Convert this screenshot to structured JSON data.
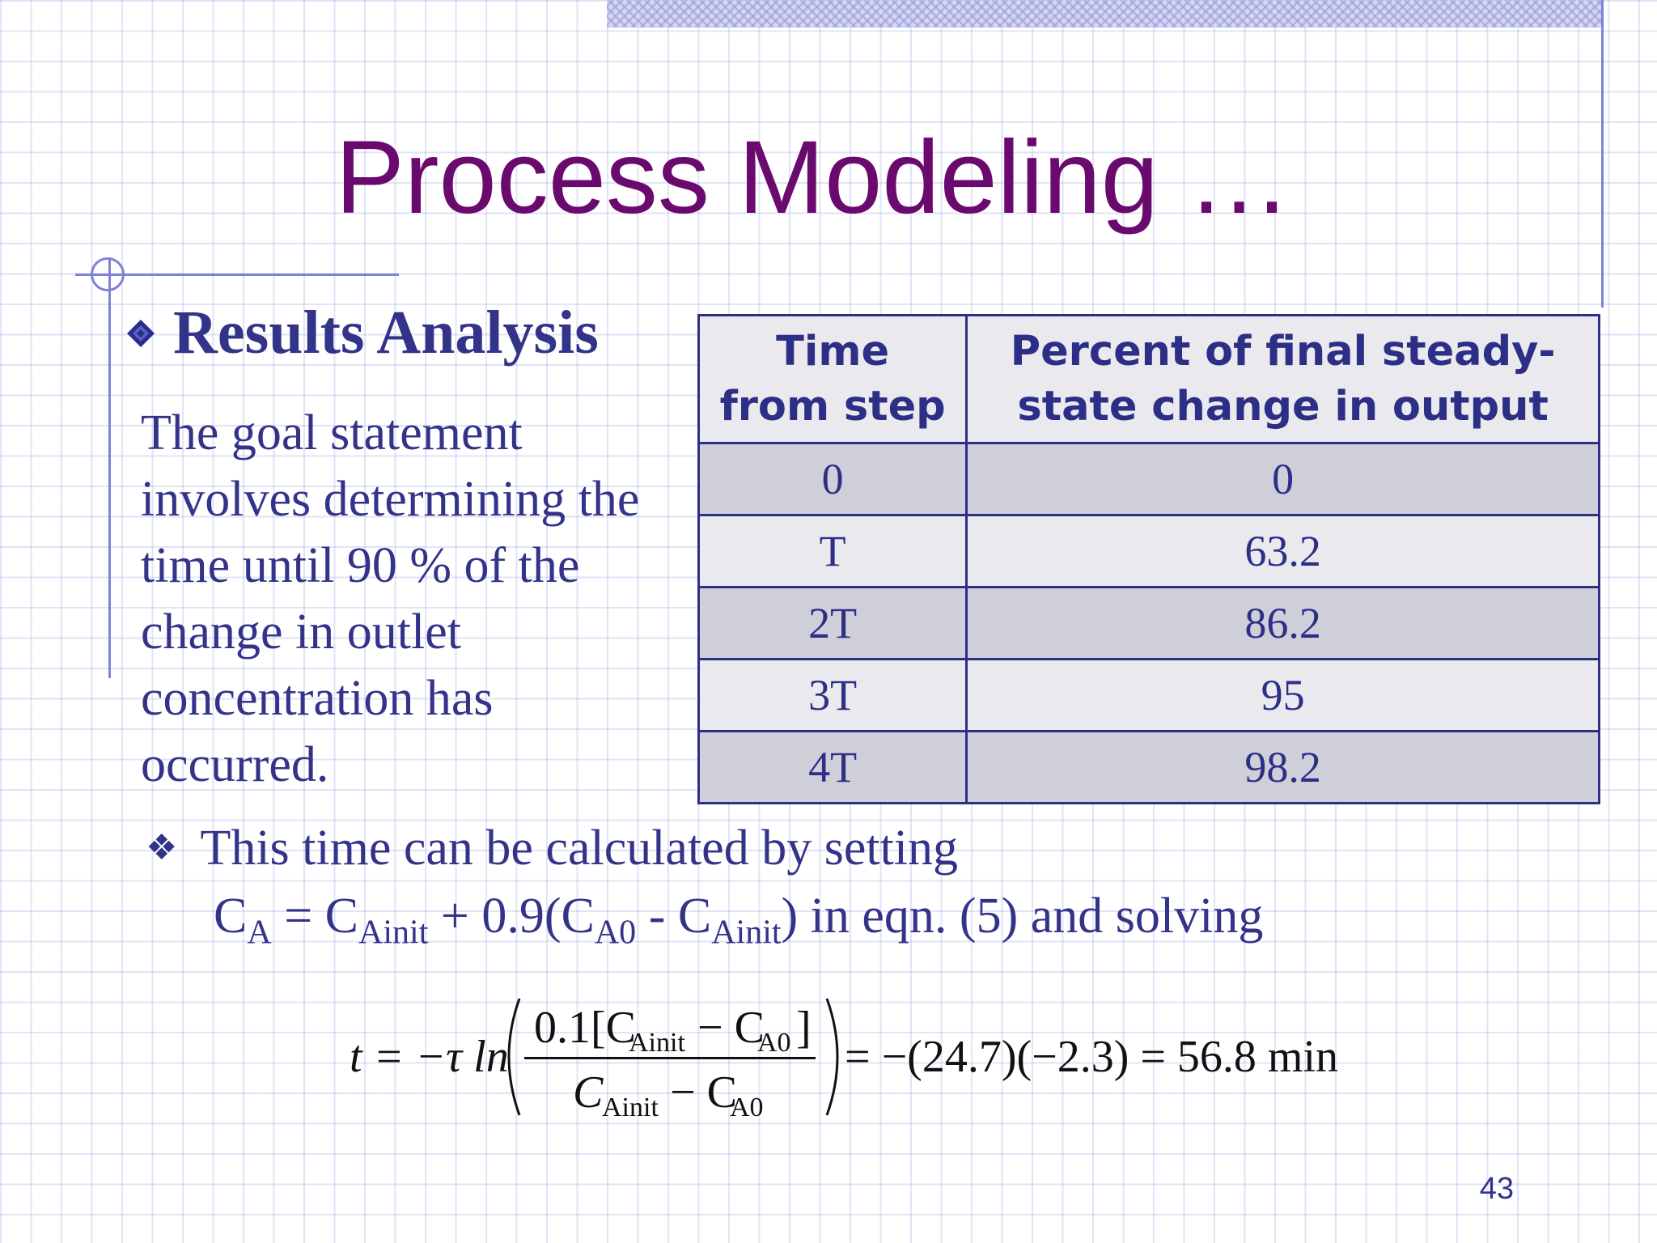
{
  "slide": {
    "title": "Process Modeling …",
    "page_number": "43"
  },
  "results": {
    "heading": "Results Analysis",
    "paragraph": "The goal statement involves determining the time until 90 % of the change in outlet concentration has occurred."
  },
  "table": {
    "headers": [
      "Time from step",
      "Percent of final steady-state change in output"
    ],
    "header_col1_line1": "Time",
    "header_col1_line2": "from step",
    "header_col2_line1": "Percent of final steady-",
    "header_col2_line2": "state change in output",
    "rows": [
      [
        "0",
        "0"
      ],
      [
        "T",
        "63.2"
      ],
      [
        "2T",
        "86.2"
      ],
      [
        "3T",
        "95"
      ],
      [
        "4T",
        "98.2"
      ]
    ]
  },
  "calc": {
    "bullet": "This time can be calculated by setting",
    "eq_CA": "C",
    "eq_A": "A",
    "eq_eq": " = C",
    "eq_Ainit1": "Ainit",
    "eq_plus": " + 0.9(C",
    "eq_A0": "A0",
    "eq_minus": " - C",
    "eq_Ainit2": "Ainit",
    "eq_tail": ") in eqn. (5) and solving"
  },
  "formula": {
    "lhs": "t = −τ ln",
    "num_a": "0.1[C",
    "num_sub1": "Ainit",
    "num_b": "− C",
    "num_sub2": "A0",
    "num_c": "]",
    "den_a": "C",
    "den_sub1": "Ainit",
    "den_b": "− C",
    "den_sub2": "A0",
    "rhs": "= −(24.7)(−2.3) = 56.8 min"
  },
  "colors": {
    "title": "#6a0a6f",
    "text": "#33338a",
    "table_border": "#2d2f87",
    "row_dark": "#cfcfd9",
    "row_light": "#e9e9ee"
  },
  "icons": {
    "heading_bullet": "diamond-icon",
    "calc_bullet": "four-diamond-star-icon"
  }
}
